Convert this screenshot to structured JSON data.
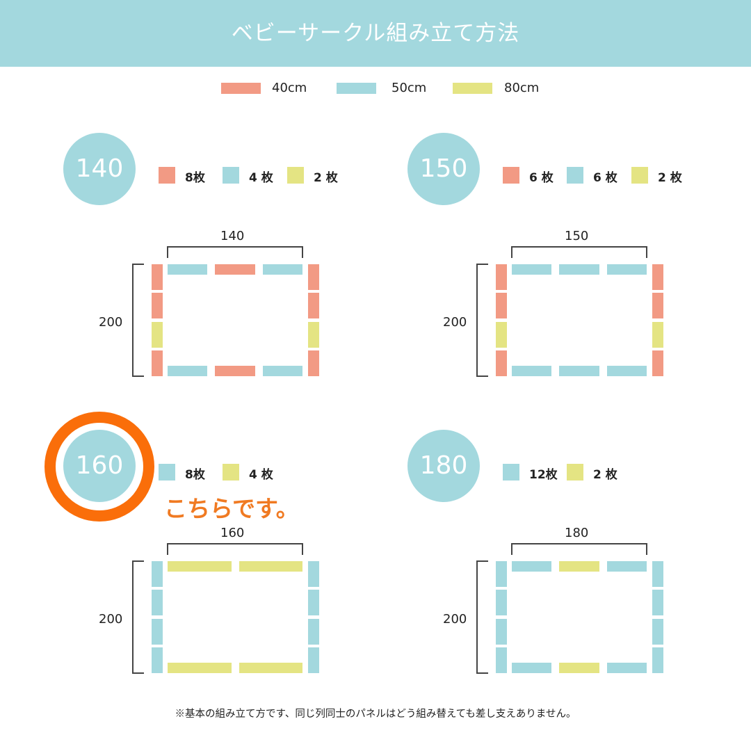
{
  "header": {
    "title": "ベビーサークル組み立て方法",
    "background": "#a3d8de"
  },
  "colors": {
    "40cm": "#f29a84",
    "50cm": "#a3d8de",
    "80cm": "#e4e483",
    "highlight": "#fa6e0a",
    "callout_text": "#f07a22"
  },
  "legend": [
    {
      "label": "40cm",
      "color": "#f29a84"
    },
    {
      "label": "50cm",
      "color": "#a3d8de"
    },
    {
      "label": "80cm",
      "color": "#e4e483"
    }
  ],
  "configs": [
    {
      "size": "140",
      "width_label": "140",
      "height_label": "200",
      "counts": [
        {
          "label": "8枚",
          "color": "#f29a84"
        },
        {
          "label": "4 枚",
          "color": "#a3d8de"
        },
        {
          "label": "2 枚",
          "color": "#e4e483"
        }
      ],
      "top_panels": [
        "50cm",
        "40cm",
        "50cm"
      ],
      "bottom_panels": [
        "50cm",
        "40cm",
        "50cm"
      ],
      "left_panels": [
        "40cm",
        "40cm",
        "80cm",
        "40cm"
      ],
      "right_panels": [
        "40cm",
        "40cm",
        "80cm",
        "40cm"
      ]
    },
    {
      "size": "150",
      "width_label": "150",
      "height_label": "200",
      "counts": [
        {
          "label": "6 枚",
          "color": "#f29a84"
        },
        {
          "label": "6 枚",
          "color": "#a3d8de"
        },
        {
          "label": "2 枚",
          "color": "#e4e483"
        }
      ],
      "top_panels": [
        "50cm",
        "50cm",
        "50cm"
      ],
      "bottom_panels": [
        "50cm",
        "50cm",
        "50cm"
      ],
      "left_panels": [
        "40cm",
        "40cm",
        "80cm",
        "40cm"
      ],
      "right_panels": [
        "40cm",
        "40cm",
        "80cm",
        "40cm"
      ]
    },
    {
      "size": "160",
      "width_label": "160",
      "height_label": "200",
      "highlighted": true,
      "callout": "こちらです。",
      "counts": [
        {
          "label": "8枚",
          "color": "#a3d8de"
        },
        {
          "label": "4 枚",
          "color": "#e4e483"
        }
      ],
      "top_panels": [
        "80cm",
        "80cm"
      ],
      "bottom_panels": [
        "80cm",
        "80cm"
      ],
      "left_panels": [
        "50cm",
        "50cm",
        "50cm",
        "50cm"
      ],
      "right_panels": [
        "50cm",
        "50cm",
        "50cm",
        "50cm"
      ]
    },
    {
      "size": "180",
      "width_label": "180",
      "height_label": "200",
      "counts": [
        {
          "label": "12枚",
          "color": "#a3d8de"
        },
        {
          "label": "2 枚",
          "color": "#e4e483"
        }
      ],
      "top_panels": [
        "50cm",
        "80cm",
        "50cm"
      ],
      "bottom_panels": [
        "50cm",
        "80cm",
        "50cm"
      ],
      "left_panels": [
        "50cm",
        "50cm",
        "50cm",
        "50cm"
      ],
      "right_panels": [
        "50cm",
        "50cm",
        "50cm",
        "50cm"
      ]
    }
  ],
  "footnote": "※基本の組み立て方です、同じ列同士のパネルはどう組み替えても差し支えありません。"
}
